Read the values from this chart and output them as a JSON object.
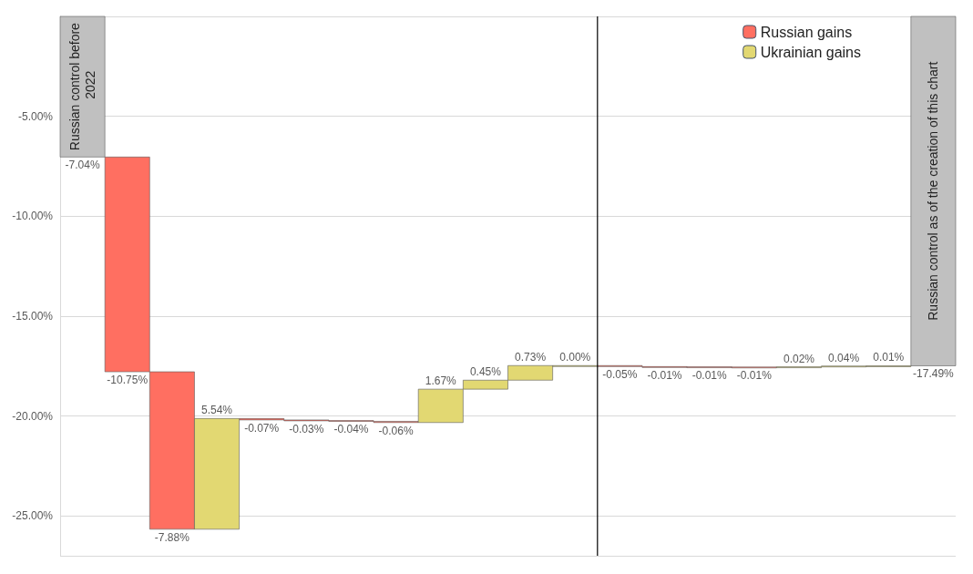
{
  "chart_data": {
    "type": "bar",
    "categories": [
      null,
      null,
      null,
      null,
      null,
      null,
      null,
      null,
      null,
      null,
      null,
      null,
      null,
      null,
      null,
      null,
      null,
      null,
      null,
      null
    ],
    "series": [
      {
        "color": "#c0c0c0",
        "values": [
          -7.04,
          null,
          null,
          null,
          null,
          null,
          null,
          null,
          null,
          null,
          null,
          null,
          null,
          null,
          null,
          null,
          null,
          null,
          null,
          -17.49
        ],
        "base": [
          0,
          null,
          null,
          null,
          null,
          null,
          null,
          null,
          null,
          null,
          null,
          null,
          null,
          null,
          null,
          null,
          null,
          null,
          null,
          0
        ],
        "value_labels": [
          "-7.04%",
          null,
          null,
          null,
          null,
          null,
          null,
          null,
          null,
          null,
          null,
          null,
          null,
          null,
          null,
          null,
          null,
          null,
          null,
          "-17.49%"
        ]
      },
      {
        "name": "Russian gains",
        "color": "#ff6f61",
        "values": [
          null,
          -10.75,
          -7.88,
          null,
          -0.07,
          -0.03,
          -0.04,
          -0.06,
          null,
          null,
          null,
          null,
          -0.05,
          -0.01,
          -0.01,
          -0.01,
          null,
          null,
          null,
          null
        ],
        "base": [
          null,
          -7.04,
          -17.79,
          null,
          -20.13,
          -20.2,
          -20.23,
          -20.27,
          null,
          null,
          null,
          null,
          -17.48,
          -17.53,
          -17.54,
          -17.55,
          null,
          null,
          null,
          null
        ],
        "value_labels": [
          null,
          "-10.75%",
          "-7.88%",
          null,
          "-0.07%",
          "-0.03%",
          "-0.04%",
          "-0.06%",
          null,
          null,
          null,
          null,
          "-0.05%",
          "-0.01%",
          "-0.01%",
          "-0.01%",
          null,
          null,
          null,
          null
        ]
      },
      {
        "name": "Ukrainian gains",
        "color": "#e2d872",
        "values": [
          null,
          null,
          null,
          5.54,
          null,
          null,
          null,
          null,
          1.67,
          0.45,
          0.73,
          0,
          null,
          null,
          null,
          null,
          0.02,
          0.04,
          0.01,
          null
        ],
        "base": [
          null,
          null,
          null,
          -25.67,
          null,
          null,
          null,
          null,
          -20.33,
          -18.66,
          -18.21,
          -17.48,
          null,
          null,
          null,
          null,
          -17.56,
          -17.54,
          -17.5,
          null
        ],
        "value_labels": [
          null,
          null,
          null,
          "5.54%",
          null,
          null,
          null,
          null,
          "1.67%",
          "0.45%",
          "0.73%",
          "0.00%",
          null,
          null,
          null,
          null,
          "0.02%",
          "0.04%",
          "0.01%",
          null
        ]
      }
    ],
    "ylim": [
      -27,
      0
    ],
    "yticks": [
      {
        "value": -25,
        "label": "-25.00%"
      },
      {
        "value": -20,
        "label": "-20.00%"
      },
      {
        "value": -15,
        "label": "-15.00%"
      },
      {
        "value": -10,
        "label": "-10.00%"
      },
      {
        "value": -5,
        "label": "-5.00%"
      }
    ],
    "grid": "y",
    "legend": "top right",
    "annotations": [
      "Russian control before 2022",
      "Russian control as of the creation of this chart"
    ]
  }
}
